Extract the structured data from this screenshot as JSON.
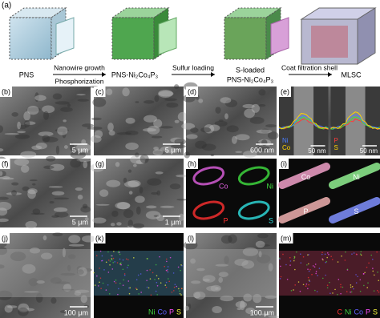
{
  "schematic": {
    "label": "(a)",
    "stages": [
      {
        "lines": [
          "PNS"
        ]
      },
      {
        "lines": [
          "PNS-Ni₂Co₄P₃"
        ]
      },
      {
        "lines": [
          "S-loaded",
          "PNS-Ni₂Co₄P₃"
        ]
      },
      {
        "lines": [
          "MLSC"
        ]
      }
    ],
    "steps": [
      {
        "lines": [
          "Nanowire growth",
          "Phosphorization"
        ]
      },
      {
        "lines": [
          "Sulfur loading"
        ]
      },
      {
        "lines": [
          "Coat filtration shell"
        ]
      }
    ]
  },
  "panels": [
    {
      "label": "(b)",
      "scale_bar": "5 μm"
    },
    {
      "label": "(c)",
      "scale_bar": "5 μm"
    },
    {
      "label": "(d)",
      "scale_bar": "600 nm"
    },
    {
      "label": "(e)",
      "profiles": [
        {
          "scale_bar": "50 nm",
          "legend": [
            {
              "text": "Ni",
              "color": "#4a7dff"
            },
            {
              "text": "Co",
              "color": "#ffd400"
            }
          ]
        },
        {
          "scale_bar": "50 nm",
          "legend": [
            {
              "text": "P",
              "color": "#ff3b3b"
            },
            {
              "text": "S",
              "color": "#ffd400"
            }
          ]
        }
      ]
    },
    {
      "label": "(f)",
      "scale_bar": "5 μm"
    },
    {
      "label": "(g)",
      "scale_bar": "1 μm"
    },
    {
      "label": "(h)",
      "elements": [
        {
          "text": "Co",
          "color": "#e060e0"
        },
        {
          "text": "Ni",
          "color": "#40e040"
        },
        {
          "text": "P",
          "color": "#ff3030"
        },
        {
          "text": "S",
          "color": "#30e0e0"
        }
      ]
    },
    {
      "label": "(i)",
      "rods": [
        {
          "text": "Co",
          "color": "#f0a0c8"
        },
        {
          "text": "Ni",
          "color": "#90f090"
        },
        {
          "text": "P",
          "color": "#f0b0b0"
        },
        {
          "text": "S",
          "color": "#8090ff"
        }
      ]
    },
    {
      "label": "(j)",
      "scale_bar": "100 μm"
    },
    {
      "label": "(k)",
      "legend": [
        {
          "text": "Ni",
          "color": "#40d040"
        },
        {
          "text": "Co",
          "color": "#6060ff"
        },
        {
          "text": "P",
          "color": "#ff50ff"
        },
        {
          "text": "S",
          "color": "#ffff40"
        }
      ]
    },
    {
      "label": "(l)",
      "scale_bar": "100 μm"
    },
    {
      "label": "(m)",
      "legend": [
        {
          "text": "C",
          "color": "#ff3030"
        },
        {
          "text": "Ni",
          "color": "#40d040"
        },
        {
          "text": "Co",
          "color": "#6060ff"
        },
        {
          "text": "P",
          "color": "#ff50ff"
        },
        {
          "text": "S",
          "color": "#ffff40"
        }
      ]
    }
  ]
}
